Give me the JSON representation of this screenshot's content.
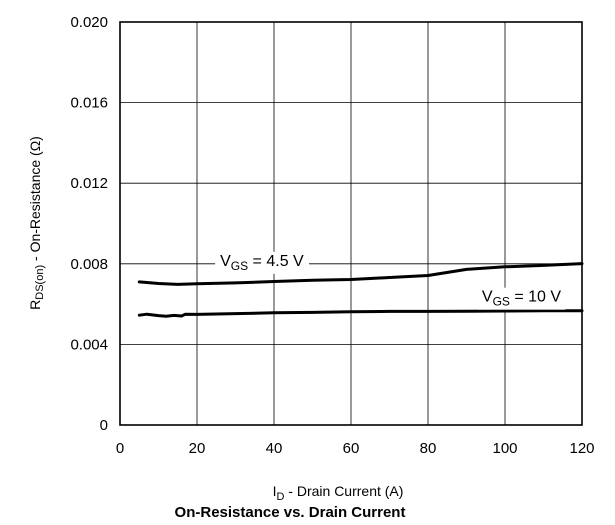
{
  "chart_data": {
    "type": "line",
    "title": "On-Resistance vs. Drain Current",
    "xlabel": {
      "main": "I",
      "sub": "D",
      "rest": " - Drain Current (A)"
    },
    "ylabel": {
      "main": "R",
      "sub": "DS(on)",
      "rest": " - On-Resistance (Ω)"
    },
    "xlim": [
      0,
      120
    ],
    "ylim": [
      0,
      0.02
    ],
    "x_ticks": [
      "0",
      "20",
      "40",
      "60",
      "80",
      "100",
      "120"
    ],
    "y_ticks": [
      "0",
      "0.004",
      "0.008",
      "0.012",
      "0.016",
      "0.020"
    ],
    "grid": true,
    "series": [
      {
        "name": "VGS = 4.5 V",
        "label": {
          "main": "V",
          "sub": "GS",
          "rest": " = 4.5 V"
        },
        "x": [
          5,
          7,
          10,
          15,
          20,
          30,
          40,
          50,
          60,
          70,
          80,
          90,
          100,
          110,
          120
        ],
        "y": [
          0.0071,
          0.00707,
          0.00702,
          0.00698,
          0.00701,
          0.00705,
          0.00712,
          0.00718,
          0.00722,
          0.00732,
          0.00742,
          0.00772,
          0.00785,
          0.00792,
          0.00801
        ]
      },
      {
        "name": "VGS = 10 V",
        "label": {
          "main": "V",
          "sub": "GS",
          "rest": " = 10 V"
        },
        "x": [
          5,
          7,
          10,
          12,
          14,
          16,
          17,
          20,
          30,
          40,
          50,
          60,
          70,
          80,
          90,
          100,
          110,
          120
        ],
        "y": [
          0.00545,
          0.0055,
          0.00543,
          0.0054,
          0.00544,
          0.00541,
          0.0055,
          0.00549,
          0.00553,
          0.00557,
          0.00559,
          0.00562,
          0.00564,
          0.00564,
          0.00565,
          0.00566,
          0.00567,
          0.00567
        ]
      }
    ]
  }
}
